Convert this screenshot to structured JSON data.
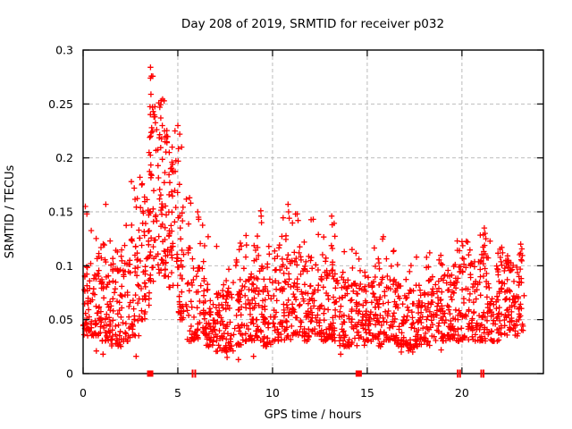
{
  "chart_data": {
    "type": "scatter",
    "title": "Day 208 of 2019, SRMTID for receiver p032",
    "xlabel": "GPS time / hours",
    "ylabel": "SRMTID / TECUs",
    "xlim": [
      0,
      24.3
    ],
    "ylim": [
      0,
      0.3
    ],
    "xticks": [
      0,
      5,
      10,
      15,
      20
    ],
    "xtick_labels": [
      "0",
      "5",
      "10",
      "15",
      "20"
    ],
    "yticks": [
      0,
      0.05,
      0.1,
      0.15,
      0.2,
      0.25,
      0.3
    ],
    "ytick_labels": [
      "0",
      "0.05",
      "0.1",
      "0.15",
      "0.2",
      "0.25",
      "0.3"
    ],
    "grid": true,
    "legend": "none",
    "marker": "plus",
    "marker_color": "#ff0000",
    "grid_color": "#b3b3b3",
    "frame_color": "#000000",
    "density_bins": [
      [
        0.0,
        0.5,
        45,
        0.035,
        0.11,
        0.16
      ],
      [
        0.5,
        1.0,
        45,
        0.035,
        0.11,
        0.135
      ],
      [
        1.0,
        1.5,
        45,
        0.03,
        0.1,
        0.14
      ],
      [
        1.5,
        2.0,
        45,
        0.025,
        0.1,
        0.12
      ],
      [
        2.0,
        2.5,
        40,
        0.03,
        0.11,
        0.14
      ],
      [
        2.5,
        3.0,
        42,
        0.035,
        0.13,
        0.175
      ],
      [
        3.0,
        3.5,
        45,
        0.05,
        0.16,
        0.21
      ],
      [
        3.5,
        4.0,
        50,
        0.085,
        0.25,
        0.285
      ],
      [
        4.0,
        4.5,
        50,
        0.09,
        0.22,
        0.255
      ],
      [
        4.5,
        5.0,
        45,
        0.08,
        0.2,
        0.235
      ],
      [
        5.0,
        5.5,
        40,
        0.05,
        0.17,
        0.23
      ],
      [
        5.5,
        6.0,
        35,
        0.03,
        0.12,
        0.165
      ],
      [
        6.0,
        6.5,
        40,
        0.03,
        0.1,
        0.15
      ],
      [
        6.5,
        7.0,
        40,
        0.025,
        0.08,
        0.13
      ],
      [
        7.0,
        7.5,
        40,
        0.02,
        0.075,
        0.11
      ],
      [
        7.5,
        8.0,
        40,
        0.02,
        0.08,
        0.105
      ],
      [
        8.0,
        8.5,
        40,
        0.025,
        0.085,
        0.13
      ],
      [
        8.5,
        9.0,
        40,
        0.03,
        0.09,
        0.135
      ],
      [
        9.0,
        9.5,
        42,
        0.03,
        0.1,
        0.152
      ],
      [
        9.5,
        10.0,
        40,
        0.025,
        0.09,
        0.13
      ],
      [
        10.0,
        10.5,
        40,
        0.03,
        0.1,
        0.14
      ],
      [
        10.5,
        11.0,
        42,
        0.03,
        0.11,
        0.157
      ],
      [
        11.0,
        11.5,
        42,
        0.035,
        0.11,
        0.15
      ],
      [
        11.5,
        12.0,
        40,
        0.03,
        0.1,
        0.13
      ],
      [
        12.0,
        12.5,
        40,
        0.035,
        0.1,
        0.145
      ],
      [
        12.5,
        13.0,
        40,
        0.03,
        0.095,
        0.13
      ],
      [
        13.0,
        13.5,
        40,
        0.03,
        0.1,
        0.15
      ],
      [
        13.5,
        14.0,
        40,
        0.025,
        0.09,
        0.12
      ],
      [
        14.0,
        14.5,
        40,
        0.025,
        0.085,
        0.115
      ],
      [
        14.5,
        15.0,
        40,
        0.025,
        0.085,
        0.12
      ],
      [
        15.0,
        15.5,
        40,
        0.03,
        0.09,
        0.13
      ],
      [
        15.5,
        16.0,
        40,
        0.025,
        0.09,
        0.127
      ],
      [
        16.0,
        16.5,
        40,
        0.03,
        0.09,
        0.115
      ],
      [
        16.5,
        17.0,
        40,
        0.025,
        0.085,
        0.11
      ],
      [
        17.0,
        17.5,
        40,
        0.02,
        0.08,
        0.105
      ],
      [
        17.5,
        18.0,
        40,
        0.025,
        0.085,
        0.11
      ],
      [
        18.0,
        18.5,
        40,
        0.025,
        0.085,
        0.11
      ],
      [
        18.5,
        19.0,
        40,
        0.03,
        0.09,
        0.12
      ],
      [
        19.0,
        19.5,
        40,
        0.03,
        0.095,
        0.12
      ],
      [
        19.5,
        20.0,
        42,
        0.03,
        0.1,
        0.125
      ],
      [
        20.0,
        20.5,
        42,
        0.03,
        0.105,
        0.125
      ],
      [
        20.5,
        21.0,
        42,
        0.03,
        0.1,
        0.13
      ],
      [
        21.0,
        21.5,
        44,
        0.03,
        0.11,
        0.137
      ],
      [
        21.5,
        22.0,
        42,
        0.03,
        0.1,
        0.12
      ],
      [
        22.0,
        22.5,
        44,
        0.035,
        0.105,
        0.118
      ],
      [
        22.5,
        23.0,
        42,
        0.035,
        0.1,
        0.11
      ],
      [
        23.0,
        23.3,
        25,
        0.04,
        0.11,
        0.12
      ]
    ],
    "outliers": [
      [
        3.56,
        0.284
      ],
      [
        3.56,
        0.274
      ],
      [
        3.58,
        0.259
      ],
      [
        3.66,
        0.247
      ],
      [
        3.7,
        0.243
      ],
      [
        3.74,
        0.238
      ],
      [
        4.12,
        0.253
      ],
      [
        4.05,
        0.247
      ],
      [
        4.1,
        0.237
      ],
      [
        4.18,
        0.23
      ],
      [
        3.62,
        0.228
      ],
      [
        3.52,
        0.219
      ],
      [
        3.48,
        0.205
      ],
      [
        4.3,
        0.225
      ],
      [
        4.42,
        0.215
      ],
      [
        4.55,
        0.205
      ],
      [
        4.7,
        0.21
      ],
      [
        4.85,
        0.225
      ],
      [
        5.0,
        0.23
      ],
      [
        5.1,
        0.222
      ],
      [
        5.2,
        0.21
      ],
      [
        2.55,
        0.178
      ],
      [
        2.7,
        0.172
      ],
      [
        3.0,
        0.182
      ],
      [
        3.1,
        0.175
      ],
      [
        1.2,
        0.157
      ],
      [
        0.12,
        0.155
      ],
      [
        0.2,
        0.148
      ],
      [
        5.62,
        0.163
      ],
      [
        5.68,
        0.158
      ],
      [
        6.05,
        0.15
      ],
      [
        6.1,
        0.143
      ],
      [
        6.6,
        0.127
      ],
      [
        9.38,
        0.151
      ],
      [
        9.4,
        0.146
      ],
      [
        9.42,
        0.14
      ],
      [
        10.82,
        0.157
      ],
      [
        10.85,
        0.15
      ],
      [
        10.88,
        0.144
      ],
      [
        11.3,
        0.148
      ],
      [
        11.35,
        0.142
      ],
      [
        12.15,
        0.143
      ],
      [
        13.12,
        0.146
      ],
      [
        13.15,
        0.138
      ],
      [
        13.16,
        0.116
      ],
      [
        15.85,
        0.127
      ],
      [
        16.4,
        0.114
      ],
      [
        19.75,
        0.123
      ],
      [
        20.3,
        0.122
      ],
      [
        21.18,
        0.135
      ],
      [
        21.22,
        0.13
      ],
      [
        21.26,
        0.125
      ],
      [
        22.1,
        0.117
      ],
      [
        22.15,
        0.112
      ],
      [
        23.1,
        0.12
      ],
      [
        7.05,
        0.118
      ],
      [
        8.3,
        0.121
      ],
      [
        8.6,
        0.128
      ],
      [
        14.2,
        0.115
      ],
      [
        17.6,
        0.108
      ],
      [
        18.3,
        0.112
      ],
      [
        0.7,
        0.021
      ],
      [
        1.05,
        0.018
      ],
      [
        2.8,
        0.016
      ],
      [
        7.6,
        0.015
      ],
      [
        8.2,
        0.013
      ],
      [
        9.0,
        0.016
      ],
      [
        13.6,
        0.018
      ],
      [
        16.8,
        0.02
      ],
      [
        18.9,
        0.022
      ]
    ],
    "baseline_markers": {
      "squares": [
        3.54,
        14.55
      ],
      "double_ticks": [
        5.78,
        5.92,
        19.78,
        19.9,
        21.02,
        21.14
      ]
    }
  }
}
